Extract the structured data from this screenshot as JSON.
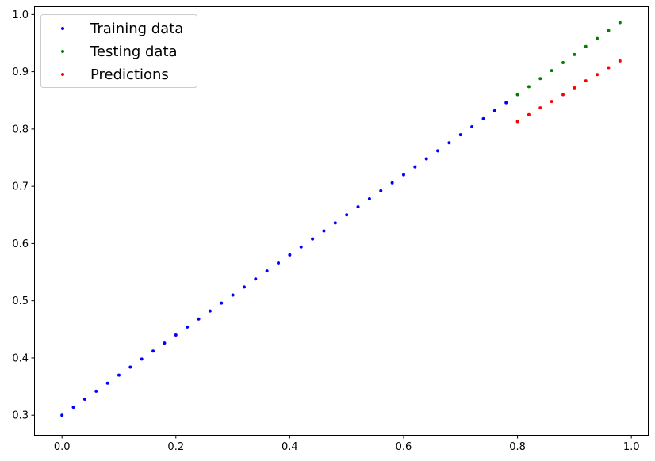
{
  "chart_data": {
    "type": "scatter",
    "title": "",
    "xlabel": "",
    "ylabel": "",
    "xlim": [
      -0.049,
      1.029
    ],
    "ylim": [
      0.2657,
      1.0143
    ],
    "grid": false,
    "legend_placement": "top-left",
    "x_ticks": [
      {
        "value": 0.0,
        "label": "0.0"
      },
      {
        "value": 0.2,
        "label": "0.2"
      },
      {
        "value": 0.4,
        "label": "0.4"
      },
      {
        "value": 0.6,
        "label": "0.6"
      },
      {
        "value": 0.8,
        "label": "0.8"
      },
      {
        "value": 1.0,
        "label": "1.0"
      }
    ],
    "y_ticks": [
      {
        "value": 0.3,
        "label": "0.3"
      },
      {
        "value": 0.4,
        "label": "0.4"
      },
      {
        "value": 0.5,
        "label": "0.5"
      },
      {
        "value": 0.6,
        "label": "0.6"
      },
      {
        "value": 0.7,
        "label": "0.7"
      },
      {
        "value": 0.8,
        "label": "0.8"
      },
      {
        "value": 0.9,
        "label": "0.9"
      },
      {
        "value": 1.0,
        "label": "1.0"
      }
    ],
    "series": [
      {
        "name": "Training data",
        "color": "#0000ff",
        "x": [
          0.0,
          0.02,
          0.04,
          0.06,
          0.08,
          0.1,
          0.12,
          0.14,
          0.16,
          0.18,
          0.2,
          0.22,
          0.24,
          0.26,
          0.28,
          0.3,
          0.32,
          0.34,
          0.36,
          0.38,
          0.4,
          0.42,
          0.44,
          0.46,
          0.48,
          0.5,
          0.52,
          0.54,
          0.56,
          0.58,
          0.6,
          0.62,
          0.64,
          0.66,
          0.68,
          0.7,
          0.72,
          0.74,
          0.76,
          0.78
        ],
        "y": [
          0.3,
          0.314,
          0.328,
          0.342,
          0.356,
          0.37,
          0.384,
          0.398,
          0.412,
          0.426,
          0.44,
          0.454,
          0.468,
          0.482,
          0.496,
          0.51,
          0.524,
          0.538,
          0.552,
          0.566,
          0.58,
          0.594,
          0.608,
          0.622,
          0.636,
          0.65,
          0.664,
          0.678,
          0.692,
          0.706,
          0.72,
          0.734,
          0.748,
          0.762,
          0.776,
          0.79,
          0.804,
          0.818,
          0.832,
          0.846
        ]
      },
      {
        "name": "Testing data",
        "color": "#008000",
        "x": [
          0.8,
          0.82,
          0.84,
          0.86,
          0.88,
          0.9,
          0.92,
          0.94,
          0.96,
          0.98
        ],
        "y": [
          0.86,
          0.874,
          0.888,
          0.902,
          0.916,
          0.93,
          0.944,
          0.958,
          0.972,
          0.986
        ]
      },
      {
        "name": "Predictions",
        "color": "#ff0000",
        "x": [
          0.8,
          0.82,
          0.84,
          0.86,
          0.88,
          0.9,
          0.92,
          0.94,
          0.96,
          0.98
        ],
        "y": [
          0.813,
          0.825,
          0.837,
          0.848,
          0.86,
          0.872,
          0.884,
          0.895,
          0.907,
          0.919
        ]
      }
    ]
  }
}
